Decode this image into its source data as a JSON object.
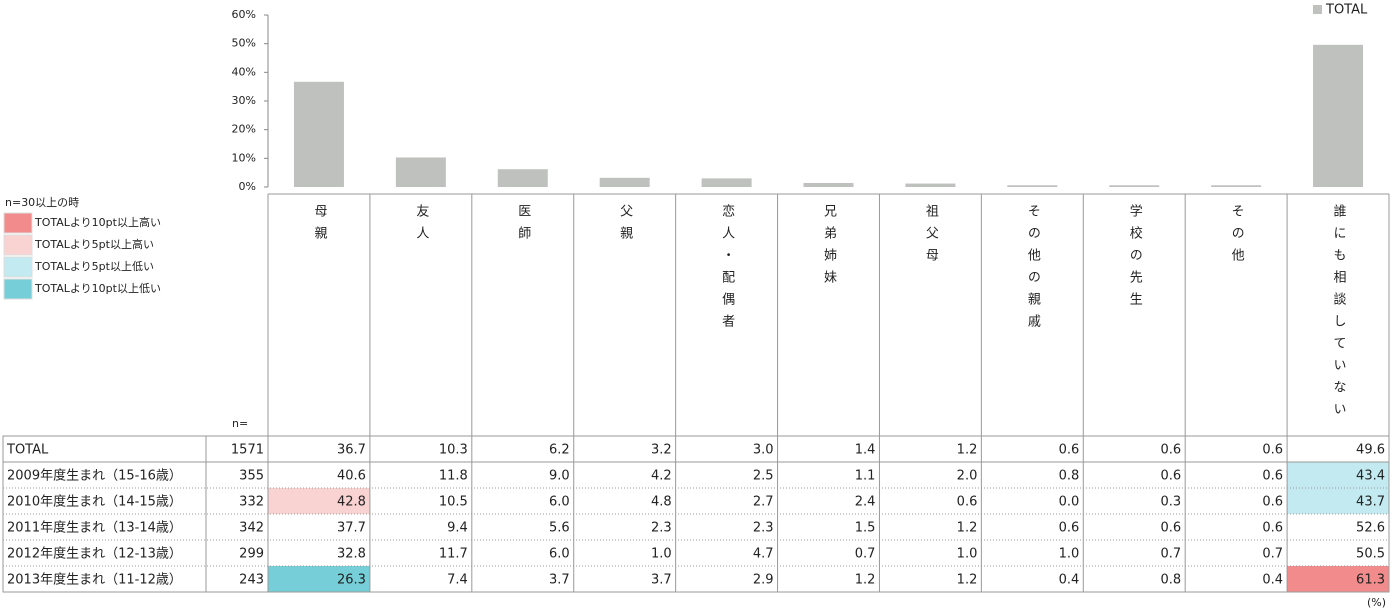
{
  "chart_data": {
    "type": "bar",
    "categories": [
      "母親",
      "友人",
      "医師",
      "父親",
      "恋人・配偶者",
      "兄弟姉妹",
      "祖父母",
      "その他の親戚",
      "学校の先生",
      "その他",
      "誰にも相談していない"
    ],
    "series": [
      {
        "name": "TOTAL",
        "color": "#bfc1be",
        "values": [
          36.7,
          10.3,
          6.2,
          3.2,
          3.0,
          1.4,
          1.2,
          0.6,
          0.6,
          0.6,
          49.6
        ]
      }
    ],
    "ylim": [
      0,
      60
    ],
    "yticks": [
      {
        "value": 0,
        "label": "0%"
      },
      {
        "value": 10,
        "label": "10%"
      },
      {
        "value": 20,
        "label": "20%"
      },
      {
        "value": 30,
        "label": "30%"
      },
      {
        "value": 40,
        "label": "40%"
      },
      {
        "value": 50,
        "label": "50%"
      },
      {
        "value": 60,
        "label": "60%"
      }
    ]
  },
  "legend": {
    "title": "n=30以上の時",
    "items": [
      {
        "label": "TOTALより10pt以上高い",
        "color": "#f28c8c"
      },
      {
        "label": "TOTALより5pt以上高い",
        "color": "#f9d2d2"
      },
      {
        "label": "TOTALより5pt以上低い",
        "color": "#c2eaf0"
      },
      {
        "label": "TOTALより10pt以上低い",
        "color": "#76cfd8"
      }
    ]
  },
  "table": {
    "n_header": "n=",
    "unit": "(%)",
    "rows": [
      [
        "TOTAL",
        "1571",
        "36.7",
        "10.3",
        "6.2",
        "3.2",
        "3.0",
        "1.4",
        "1.2",
        "0.6",
        "0.6",
        "0.6",
        "49.6"
      ],
      [
        "2009年度生まれ（15-16歳）",
        "355",
        "40.6",
        "11.8",
        "9.0",
        "4.2",
        "2.5",
        "1.1",
        "2.0",
        "0.8",
        "0.6",
        "0.6",
        {
          "text": "43.4",
          "highlight": 2
        }
      ],
      [
        "2010年度生まれ（14-15歳）",
        "332",
        {
          "text": "42.8",
          "highlight": 1
        },
        "10.5",
        "6.0",
        "4.8",
        "2.7",
        "2.4",
        "0.6",
        "0.0",
        "0.3",
        "0.6",
        {
          "text": "43.7",
          "highlight": 2
        }
      ],
      [
        "2011年度生まれ（13-14歳）",
        "342",
        "37.7",
        "9.4",
        "5.6",
        "2.3",
        "2.3",
        "1.5",
        "1.2",
        "0.6",
        "0.6",
        "0.6",
        "52.6"
      ],
      [
        "2012年度生まれ（12-13歳）",
        "299",
        "32.8",
        "11.7",
        "6.0",
        "1.0",
        "4.7",
        "0.7",
        "1.0",
        "1.0",
        "0.7",
        "0.7",
        "50.5"
      ],
      [
        "2013年度生まれ（11-12歳）",
        "243",
        {
          "text": "26.3",
          "highlight": 3
        },
        "7.4",
        "3.7",
        "3.7",
        "2.9",
        "1.2",
        "1.2",
        "0.4",
        "0.8",
        "0.4",
        {
          "text": "61.3",
          "highlight": 0
        }
      ]
    ]
  }
}
